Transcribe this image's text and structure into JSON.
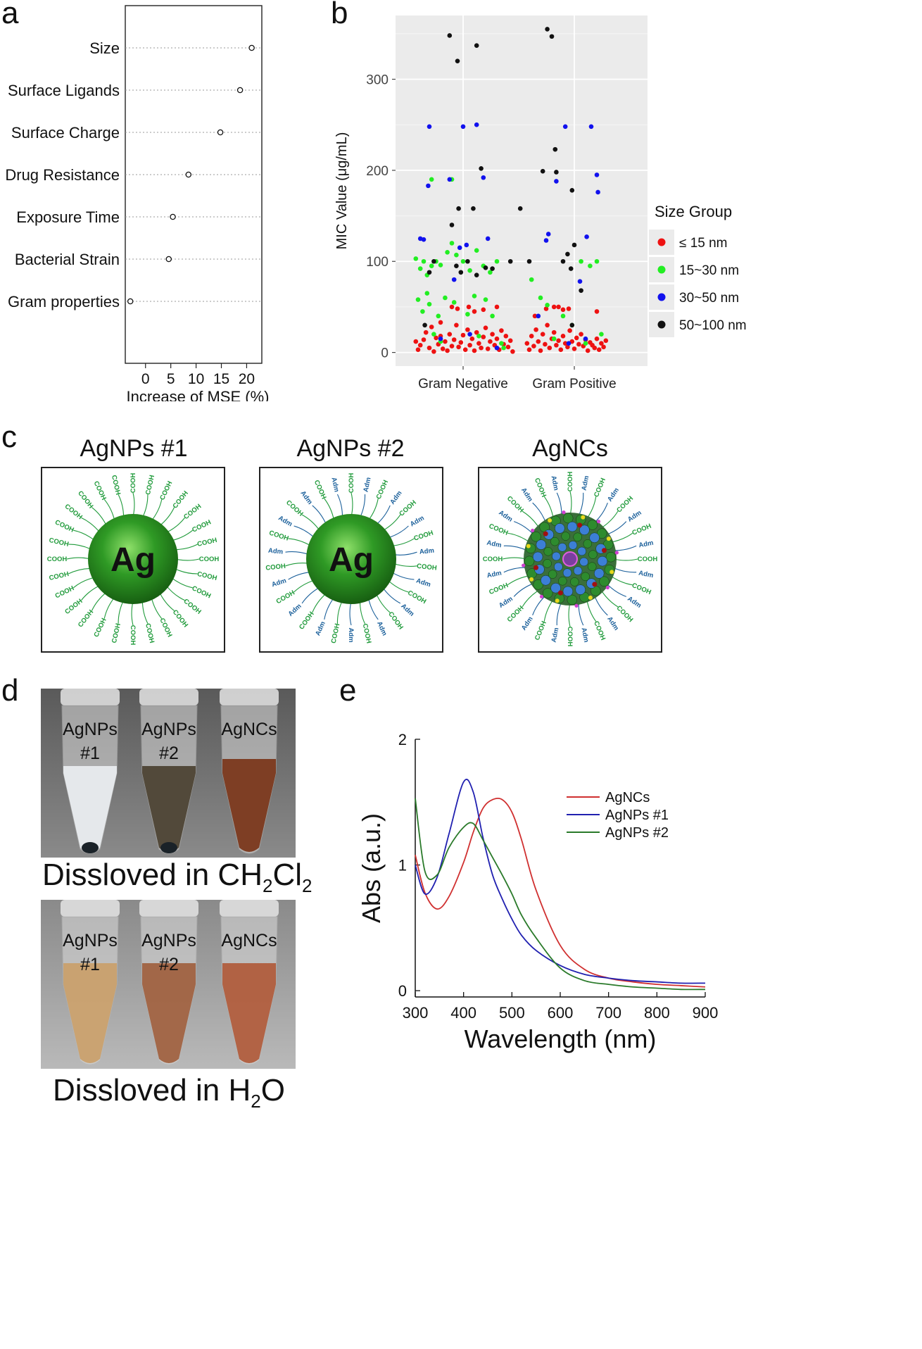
{
  "panels": {
    "a": "a",
    "b": "b",
    "c": "c",
    "d": "d",
    "e": "e"
  },
  "chart_data": [
    {
      "type": "scatter",
      "id": "a",
      "title": "",
      "xlabel": "Increase of MSE (%)",
      "ylabel": "",
      "xlim": [
        -4,
        23
      ],
      "xticks": [
        0,
        5,
        10,
        15,
        20
      ],
      "categories": [
        "Size",
        "Surface Ligands",
        "Surface Charge",
        "Drug Resistance",
        "Exposure Time",
        "Bacterial Strain",
        "Gram properties"
      ],
      "values": [
        21.0,
        18.7,
        14.8,
        8.5,
        5.4,
        4.6,
        -3.0
      ]
    },
    {
      "type": "scatter",
      "id": "b",
      "xlabel": "",
      "ylabel": "MIC Value (μg/mL)",
      "ylim": [
        -15,
        370
      ],
      "yticks": [
        0,
        100,
        200,
        300
      ],
      "categories": [
        "Gram Negative",
        "Gram Positive"
      ],
      "legend_title": "Size Group",
      "legend_position": "right",
      "series": [
        {
          "name": "≤ 15 nm",
          "color": "#ee1111",
          "points": [
            [
              -0.42,
              12
            ],
            [
              -0.4,
              3
            ],
            [
              -0.38,
              8
            ],
            [
              -0.35,
              14
            ],
            [
              -0.33,
              22
            ],
            [
              -0.3,
              5
            ],
            [
              -0.28,
              28
            ],
            [
              -0.26,
              1
            ],
            [
              -0.24,
              16
            ],
            [
              -0.22,
              9
            ],
            [
              -0.2,
              18
            ],
            [
              -0.18,
              4
            ],
            [
              -0.16,
              12
            ],
            [
              -0.14,
              2
            ],
            [
              -0.12,
              20
            ],
            [
              -0.1,
              7
            ],
            [
              -0.08,
              14
            ],
            [
              -0.06,
              30
            ],
            [
              -0.04,
              6
            ],
            [
              -0.02,
              11
            ],
            [
              0.0,
              19
            ],
            [
              0.02,
              3
            ],
            [
              0.04,
              25
            ],
            [
              0.06,
              8
            ],
            [
              0.08,
              15
            ],
            [
              0.1,
              2
            ],
            [
              0.12,
              22
            ],
            [
              0.14,
              10
            ],
            [
              0.16,
              5
            ],
            [
              0.18,
              17
            ],
            [
              0.2,
              27
            ],
            [
              0.22,
              4
            ],
            [
              0.24,
              12
            ],
            [
              0.26,
              20
            ],
            [
              0.28,
              8
            ],
            [
              0.3,
              15
            ],
            [
              0.32,
              3
            ],
            [
              0.34,
              24
            ],
            [
              0.36,
              9
            ],
            [
              0.38,
              18
            ],
            [
              0.4,
              6
            ],
            [
              0.42,
              13
            ],
            [
              0.44,
              1
            ],
            [
              -0.1,
              50
            ],
            [
              -0.05,
              48
            ],
            [
              0.05,
              50
            ],
            [
              0.18,
              47
            ],
            [
              0.3,
              50
            ],
            [
              -0.2,
              33
            ],
            [
              0.1,
              45
            ],
            [
              0.58,
              10
            ],
            [
              0.6,
              3
            ],
            [
              0.62,
              18
            ],
            [
              0.64,
              7
            ],
            [
              0.66,
              25
            ],
            [
              0.68,
              12
            ],
            [
              0.7,
              2
            ],
            [
              0.72,
              20
            ],
            [
              0.74,
              9
            ],
            [
              0.76,
              30
            ],
            [
              0.78,
              5
            ],
            [
              0.8,
              15
            ],
            [
              0.82,
              22
            ],
            [
              0.84,
              8
            ],
            [
              0.86,
              13
            ],
            [
              0.88,
              3
            ],
            [
              0.9,
              18
            ],
            [
              0.92,
              10
            ],
            [
              0.94,
              6
            ],
            [
              0.96,
              24
            ],
            [
              0.98,
              12
            ],
            [
              1.0,
              4
            ],
            [
              1.02,
              16
            ],
            [
              1.04,
              9
            ],
            [
              1.06,
              20
            ],
            [
              1.08,
              7
            ],
            [
              1.1,
              14
            ],
            [
              1.12,
              2
            ],
            [
              1.14,
              11
            ],
            [
              1.16,
              8
            ],
            [
              1.18,
              5
            ],
            [
              1.2,
              15
            ],
            [
              1.22,
              3
            ],
            [
              1.24,
              10
            ],
            [
              1.26,
              6
            ],
            [
              1.28,
              13
            ],
            [
              0.75,
              48
            ],
            [
              0.82,
              50
            ],
            [
              0.86,
              50
            ],
            [
              0.9,
              47
            ],
            [
              0.95,
              48
            ],
            [
              1.2,
              45
            ],
            [
              0.65,
              40
            ]
          ]
        },
        {
          "name": "15~30 nm",
          "color": "#22ee22",
          "points": [
            [
              -0.42,
              103
            ],
            [
              -0.38,
              92
            ],
            [
              -0.35,
              100
            ],
            [
              -0.32,
              85
            ],
            [
              -0.28,
              95
            ],
            [
              -0.24,
              100
            ],
            [
              -0.2,
              96
            ],
            [
              -0.14,
              110
            ],
            [
              -0.1,
              120
            ],
            [
              -0.06,
              107
            ],
            [
              0.0,
              100
            ],
            [
              0.06,
              90
            ],
            [
              0.12,
              112
            ],
            [
              0.18,
              95
            ],
            [
              0.24,
              88
            ],
            [
              0.3,
              100
            ],
            [
              -0.4,
              58
            ],
            [
              -0.36,
              45
            ],
            [
              -0.3,
              53
            ],
            [
              -0.22,
              40
            ],
            [
              -0.16,
              60
            ],
            [
              -0.08,
              55
            ],
            [
              0.04,
              42
            ],
            [
              0.1,
              62
            ],
            [
              0.2,
              58
            ],
            [
              0.26,
              40
            ],
            [
              0.36,
              5
            ],
            [
              -0.28,
              190
            ],
            [
              -0.1,
              190
            ],
            [
              -0.32,
              65
            ],
            [
              -0.26,
              20
            ],
            [
              -0.2,
              12
            ],
            [
              0.14,
              18
            ],
            [
              0.34,
              10
            ],
            [
              0.62,
              80
            ],
            [
              0.7,
              60
            ],
            [
              0.76,
              52
            ],
            [
              0.82,
              15
            ],
            [
              0.9,
              40
            ],
            [
              0.98,
              30
            ],
            [
              1.06,
              100
            ],
            [
              1.14,
              95
            ],
            [
              1.2,
              100
            ],
            [
              1.24,
              20
            ],
            [
              1.1,
              10
            ]
          ]
        },
        {
          "name": "30~50 nm",
          "color": "#1111ee",
          "points": [
            [
              -0.38,
              125
            ],
            [
              -0.35,
              124
            ],
            [
              -0.3,
              248
            ],
            [
              -0.31,
              183
            ],
            [
              -0.12,
              190
            ],
            [
              0.0,
              248
            ],
            [
              -0.03,
              115
            ],
            [
              0.03,
              118
            ],
            [
              -0.08,
              80
            ],
            [
              0.12,
              250
            ],
            [
              0.18,
              192
            ],
            [
              0.22,
              125
            ],
            [
              0.3,
              5
            ],
            [
              -0.2,
              15
            ],
            [
              0.06,
              20
            ],
            [
              0.92,
              248
            ],
            [
              0.84,
              188
            ],
            [
              0.75,
              123
            ],
            [
              0.77,
              130
            ],
            [
              1.15,
              248
            ],
            [
              1.2,
              195
            ],
            [
              1.21,
              176
            ],
            [
              1.11,
              127
            ],
            [
              1.05,
              78
            ],
            [
              1.1,
              15
            ],
            [
              0.95,
              10
            ],
            [
              0.68,
              40
            ]
          ]
        },
        {
          "name": "50~100 nm",
          "color": "#111111",
          "points": [
            [
              -0.12,
              348
            ],
            [
              -0.05,
              320
            ],
            [
              0.12,
              337
            ],
            [
              -0.04,
              158
            ],
            [
              -0.1,
              140
            ],
            [
              -0.06,
              95
            ],
            [
              -0.02,
              88
            ],
            [
              0.04,
              100
            ],
            [
              0.09,
              158
            ],
            [
              0.16,
              202
            ],
            [
              0.2,
              93
            ],
            [
              -0.26,
              100
            ],
            [
              -0.3,
              88
            ],
            [
              0.6,
              100
            ],
            [
              0.52,
              158
            ],
            [
              0.42,
              100
            ],
            [
              0.76,
              355
            ],
            [
              0.8,
              347
            ],
            [
              0.83,
              223
            ],
            [
              0.72,
              199
            ],
            [
              0.84,
              198
            ],
            [
              0.98,
              178
            ],
            [
              1.0,
              118
            ],
            [
              0.94,
              108
            ],
            [
              0.97,
              92
            ],
            [
              0.9,
              100
            ],
            [
              1.06,
              68
            ],
            [
              0.98,
              30
            ],
            [
              -0.34,
              30
            ],
            [
              0.26,
              92
            ],
            [
              0.12,
              85
            ]
          ]
        }
      ]
    },
    {
      "type": "line",
      "id": "e",
      "xlabel": "Wavelength (nm)",
      "ylabel": "Abs (a.u.)",
      "xlim": [
        300,
        900
      ],
      "ylim": [
        -0.05,
        2.0
      ],
      "xticks": [
        300,
        400,
        500,
        600,
        700,
        800,
        900
      ],
      "yticks": [
        0,
        1,
        2
      ],
      "legend_position": "top-right",
      "x": [
        300,
        320,
        345,
        370,
        400,
        420,
        440,
        460,
        480,
        500,
        520,
        550,
        600,
        650,
        700,
        750,
        800,
        850,
        900
      ],
      "series": [
        {
          "name": "AgNCs",
          "color": "#d03030",
          "values": [
            1.08,
            0.78,
            0.65,
            0.75,
            1.02,
            1.26,
            1.45,
            1.52,
            1.52,
            1.42,
            1.2,
            0.8,
            0.36,
            0.17,
            0.1,
            0.07,
            0.05,
            0.04,
            0.03
          ]
        },
        {
          "name": "AgNPs #1",
          "color": "#2020b0",
          "values": [
            1.0,
            0.77,
            0.9,
            1.25,
            1.66,
            1.58,
            1.22,
            0.92,
            0.73,
            0.57,
            0.44,
            0.32,
            0.2,
            0.13,
            0.1,
            0.08,
            0.07,
            0.06,
            0.06
          ]
        },
        {
          "name": "AgNPs #2",
          "color": "#2a7a2a",
          "values": [
            1.53,
            0.95,
            0.92,
            1.14,
            1.3,
            1.33,
            1.2,
            1.06,
            0.92,
            0.77,
            0.6,
            0.42,
            0.18,
            0.08,
            0.05,
            0.03,
            0.02,
            0.01,
            0.01
          ]
        }
      ]
    }
  ],
  "panel_c": {
    "titles": [
      "AgNPs #1",
      "AgNPs #2",
      "AgNCs"
    ],
    "core_label": "Ag",
    "ligand_cooh": "COOH",
    "ligand_adm": "Adm"
  },
  "panel_d": {
    "top_tubes": [
      [
        "AgNPs",
        "#1"
      ],
      [
        "AgNPs",
        "#2"
      ],
      [
        "AgNCs",
        ""
      ]
    ],
    "bottom_tubes": [
      [
        "AgNPs",
        "#1"
      ],
      [
        "AgNPs",
        "#2"
      ],
      [
        "AgNCs",
        ""
      ]
    ],
    "caption_top": {
      "prefix": "Dissloved in CH",
      "s1": "2",
      "mid": "Cl",
      "s2": "2"
    },
    "caption_bottom": {
      "prefix": "Dissloved in H",
      "s1": "2",
      "suffix": "O"
    }
  }
}
